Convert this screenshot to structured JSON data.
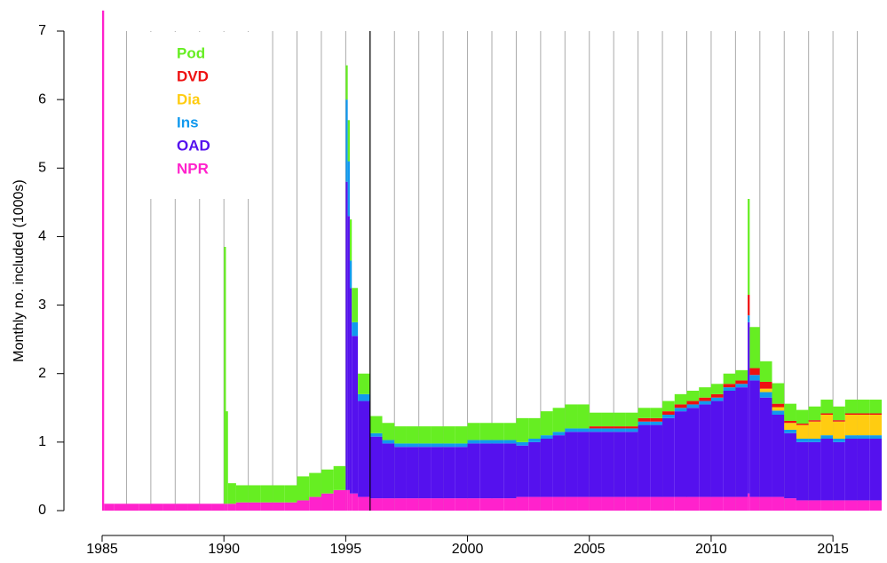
{
  "chart_data": {
    "type": "stacked_bar",
    "ylabel": "Monthly no. included (1000s)",
    "xlim": [
      1985,
      2017
    ],
    "xticks": [
      1985,
      1990,
      1995,
      2000,
      2005,
      2010,
      2015
    ],
    "minor_xticks": [
      1986,
      1987,
      1988,
      1989,
      1990,
      1991,
      1992,
      1993,
      1994,
      1995,
      1996,
      1997,
      1998,
      1999,
      2000,
      2001,
      2002,
      2003,
      2004,
      2005,
      2006,
      2007,
      2008,
      2009,
      2010,
      2011,
      2012,
      2013,
      2014,
      2015,
      2016
    ],
    "vline": 1996,
    "ylim": [
      0,
      7
    ],
    "yticks": [
      0,
      1,
      2,
      3,
      4,
      5,
      6,
      7
    ],
    "grid": true,
    "legend": "top-left",
    "x": [
      1985,
      1985.083,
      1985.5,
      1986,
      1986.5,
      1987,
      1987.5,
      1988,
      1988.5,
      1989,
      1989.5,
      1990,
      1990.083,
      1990.167,
      1990.5,
      1991,
      1991.5,
      1992,
      1992.5,
      1993,
      1993.5,
      1994,
      1994.5,
      1995,
      1995.083,
      1995.167,
      1995.25,
      1995.5,
      1996,
      1996.5,
      1997,
      1997.5,
      1998,
      1998.5,
      1999,
      1999.5,
      2000,
      2000.5,
      2001,
      2001.5,
      2002,
      2002.5,
      2003,
      2003.5,
      2004,
      2004.5,
      2005,
      2005.5,
      2006,
      2006.5,
      2007,
      2007.5,
      2008,
      2008.5,
      2009,
      2009.5,
      2010,
      2010.5,
      2011,
      2011.5,
      2011.583,
      2012,
      2012.5,
      2013,
      2013.5,
      2014,
      2014.5,
      2015,
      2015.5,
      2016,
      2016.5
    ],
    "series": [
      {
        "name": "Pod",
        "color": "#66ee22",
        "values": [
          0,
          0,
          0,
          0,
          0,
          0,
          0,
          0,
          0,
          0,
          0,
          3.75,
          1.35,
          0.3,
          0.25,
          0.25,
          0.25,
          0.25,
          0.25,
          0.35,
          0.35,
          0.35,
          0.35,
          0.5,
          0.6,
          0.6,
          0.5,
          0.3,
          0.25,
          0.25,
          0.25,
          0.25,
          0.25,
          0.25,
          0.25,
          0.25,
          0.25,
          0.25,
          0.25,
          0.25,
          0.35,
          0.3,
          0.35,
          0.35,
          0.35,
          0.35,
          0.2,
          0.2,
          0.2,
          0.2,
          0.15,
          0.15,
          0.15,
          0.15,
          0.15,
          0.15,
          0.15,
          0.15,
          0.15,
          1.4,
          0.6,
          0.3,
          0.3,
          0.25,
          0.2,
          0.2,
          0.2,
          0.2,
          0.2,
          0.2,
          0.2
        ]
      },
      {
        "name": "DVD",
        "color": "#ee1111",
        "values": [
          0,
          0,
          0,
          0,
          0,
          0,
          0,
          0,
          0,
          0,
          0,
          0,
          0,
          0,
          0,
          0,
          0,
          0,
          0,
          0,
          0,
          0,
          0,
          0,
          0,
          0,
          0,
          0,
          0,
          0,
          0,
          0,
          0,
          0,
          0,
          0,
          0,
          0,
          0,
          0,
          0,
          0,
          0,
          0,
          0,
          0,
          0.03,
          0.03,
          0.03,
          0.03,
          0.05,
          0.05,
          0.05,
          0.05,
          0.05,
          0.05,
          0.05,
          0.05,
          0.05,
          0.3,
          0.1,
          0.1,
          0.05,
          0.03,
          0.02,
          0.02,
          0.02,
          0.02,
          0.02,
          0.02,
          0.02
        ]
      },
      {
        "name": "Dia",
        "color": "#ffcc11",
        "values": [
          0,
          0,
          0,
          0,
          0,
          0,
          0,
          0,
          0,
          0,
          0,
          0,
          0,
          0,
          0,
          0,
          0,
          0,
          0,
          0,
          0,
          0,
          0,
          0,
          0,
          0,
          0,
          0,
          0,
          0,
          0,
          0,
          0,
          0,
          0,
          0,
          0,
          0,
          0,
          0,
          0,
          0,
          0,
          0,
          0,
          0,
          0,
          0,
          0,
          0,
          0,
          0,
          0,
          0,
          0,
          0,
          0,
          0,
          0,
          0,
          0,
          0.05,
          0.05,
          0.1,
          0.2,
          0.25,
          0.3,
          0.25,
          0.3,
          0.3,
          0.3
        ]
      },
      {
        "name": "Ins",
        "color": "#1199ee",
        "values": [
          0,
          0,
          0,
          0,
          0,
          0,
          0,
          0,
          0,
          0,
          0,
          0,
          0,
          0,
          0,
          0,
          0,
          0,
          0,
          0,
          0,
          0,
          0,
          1.2,
          0.8,
          0.4,
          0.2,
          0.1,
          0.05,
          0.05,
          0.05,
          0.05,
          0.05,
          0.05,
          0.05,
          0.05,
          0.05,
          0.05,
          0.05,
          0.05,
          0.05,
          0.05,
          0.05,
          0.05,
          0.05,
          0.05,
          0.05,
          0.05,
          0.05,
          0.05,
          0.05,
          0.05,
          0.05,
          0.05,
          0.05,
          0.05,
          0.05,
          0.05,
          0.05,
          0.1,
          0.08,
          0.08,
          0.06,
          0.05,
          0.05,
          0.05,
          0.05,
          0.05,
          0.05,
          0.05,
          0.05
        ]
      },
      {
        "name": "OAD",
        "color": "#5511ee",
        "values": [
          0,
          0,
          0,
          0,
          0,
          0,
          0,
          0,
          0,
          0,
          0,
          0,
          0,
          0,
          0,
          0,
          0,
          0,
          0,
          0,
          0,
          0,
          0,
          4.5,
          4.0,
          3.0,
          2.3,
          1.4,
          0.9,
          0.8,
          0.75,
          0.75,
          0.75,
          0.75,
          0.75,
          0.75,
          0.8,
          0.8,
          0.8,
          0.8,
          0.75,
          0.8,
          0.85,
          0.9,
          0.95,
          0.95,
          0.95,
          0.95,
          0.95,
          0.95,
          1.05,
          1.05,
          1.15,
          1.25,
          1.3,
          1.35,
          1.4,
          1.55,
          1.6,
          2.5,
          1.7,
          1.45,
          1.2,
          0.95,
          0.85,
          0.85,
          0.9,
          0.85,
          0.9,
          0.9,
          0.9
        ]
      },
      {
        "name": "NPR",
        "color": "#ff22cc",
        "values": [
          7.3,
          0.1,
          0.1,
          0.1,
          0.1,
          0.1,
          0.1,
          0.1,
          0.1,
          0.1,
          0.1,
          0.1,
          0.1,
          0.1,
          0.12,
          0.12,
          0.12,
          0.12,
          0.12,
          0.15,
          0.2,
          0.25,
          0.3,
          0.3,
          0.3,
          0.25,
          0.25,
          0.2,
          0.18,
          0.18,
          0.18,
          0.18,
          0.18,
          0.18,
          0.18,
          0.18,
          0.18,
          0.18,
          0.18,
          0.18,
          0.2,
          0.2,
          0.2,
          0.2,
          0.2,
          0.2,
          0.2,
          0.2,
          0.2,
          0.2,
          0.2,
          0.2,
          0.2,
          0.2,
          0.2,
          0.2,
          0.2,
          0.2,
          0.2,
          0.25,
          0.2,
          0.2,
          0.2,
          0.18,
          0.15,
          0.15,
          0.15,
          0.15,
          0.15,
          0.15,
          0.15
        ]
      }
    ]
  }
}
